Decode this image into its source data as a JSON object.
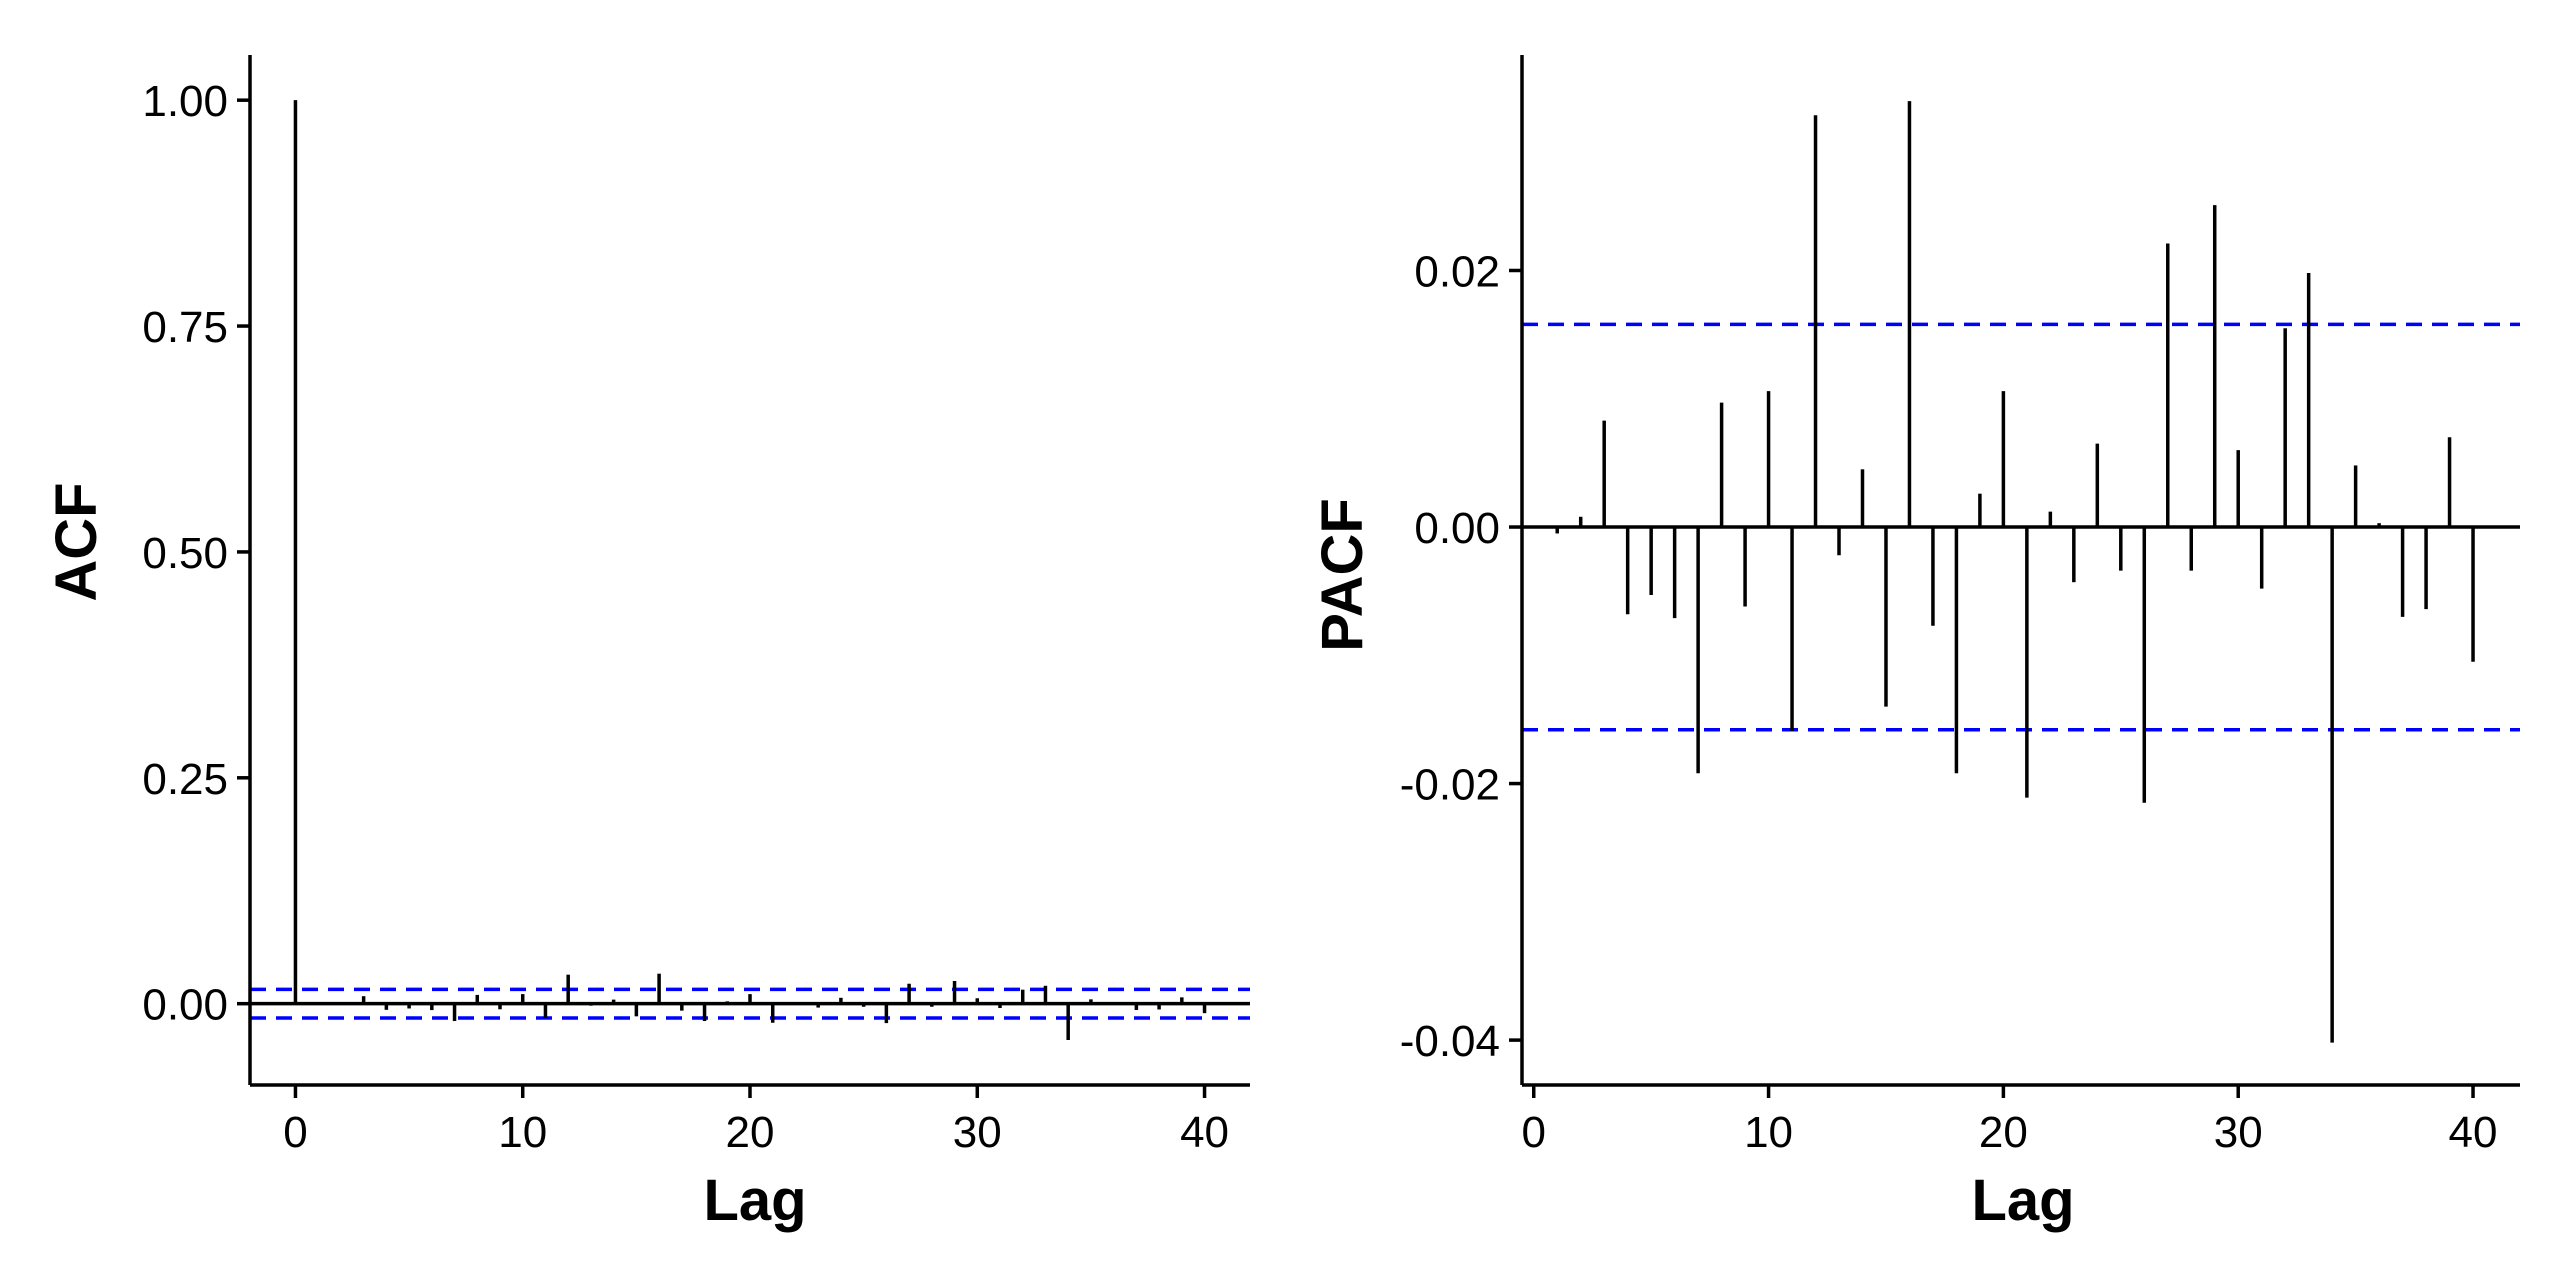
{
  "chart_data": [
    {
      "type": "bar",
      "style": "lollipop-stem",
      "xlabel": "Lag",
      "ylabel": "ACF",
      "xlim": [
        -2,
        42
      ],
      "ylim": [
        -0.09,
        1.05
      ],
      "xticks": [
        0,
        10,
        20,
        30,
        40
      ],
      "xtick_labels": [
        "0",
        "10",
        "20",
        "30",
        "40"
      ],
      "yticks": [
        0,
        0.25,
        0.5,
        0.75,
        1.0
      ],
      "ytick_labels": [
        "0.00",
        "0.25",
        "0.50",
        "0.75",
        "1.00"
      ],
      "confidence_bounds": [
        0.0158,
        -0.0158
      ],
      "lags": [
        0,
        1,
        2,
        3,
        4,
        5,
        6,
        7,
        8,
        9,
        10,
        11,
        12,
        13,
        14,
        15,
        16,
        17,
        18,
        19,
        20,
        21,
        22,
        23,
        24,
        25,
        26,
        27,
        28,
        29,
        30,
        31,
        32,
        33,
        34,
        35,
        36,
        37,
        38,
        39,
        40
      ],
      "values": [
        1.0,
        -0.0005,
        0.0008,
        0.0083,
        -0.0068,
        -0.0053,
        -0.0071,
        -0.0192,
        0.0097,
        -0.0062,
        0.0106,
        -0.0159,
        0.0321,
        -0.0022,
        0.0045,
        -0.014,
        0.0332,
        -0.0077,
        -0.0192,
        0.0026,
        0.0106,
        -0.0211,
        0.0012,
        -0.0043,
        0.0065,
        -0.0034,
        -0.0215,
        0.0221,
        -0.0034,
        0.0251,
        0.006,
        -0.0048,
        0.0155,
        0.0198,
        -0.0402,
        0.0048,
        0.0003,
        -0.007,
        -0.0064,
        0.007,
        -0.0105
      ],
      "grid": false,
      "colors": {
        "stem": "#000000",
        "bound": "#0000ff",
        "zero_line": "#000000"
      }
    },
    {
      "type": "bar",
      "style": "lollipop-stem",
      "xlabel": "Lag",
      "ylabel": "PACF",
      "xlim": [
        -0.5,
        42
      ],
      "ylim": [
        -0.0435,
        0.0368
      ],
      "xticks": [
        0,
        10,
        20,
        30,
        40
      ],
      "xtick_labels": [
        "0",
        "10",
        "20",
        "30",
        "40"
      ],
      "yticks": [
        -0.04,
        -0.02,
        0.0,
        0.02
      ],
      "ytick_labels": [
        "-0.04",
        "-0.02",
        "0.00",
        "0.02"
      ],
      "confidence_bounds": [
        0.0158,
        -0.0158
      ],
      "lags": [
        1,
        2,
        3,
        4,
        5,
        6,
        7,
        8,
        9,
        10,
        11,
        12,
        13,
        14,
        15,
        16,
        17,
        18,
        19,
        20,
        21,
        22,
        23,
        24,
        25,
        26,
        27,
        28,
        29,
        30,
        31,
        32,
        33,
        34,
        35,
        36,
        37,
        38,
        39,
        40
      ],
      "values": [
        -0.0005,
        0.0008,
        0.0083,
        -0.0068,
        -0.0053,
        -0.0071,
        -0.0192,
        0.0097,
        -0.0062,
        0.0106,
        -0.0159,
        0.0321,
        -0.0022,
        0.0045,
        -0.014,
        0.0332,
        -0.0077,
        -0.0192,
        0.0026,
        0.0106,
        -0.0211,
        0.0012,
        -0.0043,
        0.0065,
        -0.0034,
        -0.0215,
        0.0221,
        -0.0034,
        0.0251,
        0.006,
        -0.0048,
        0.0155,
        0.0198,
        -0.0402,
        0.0048,
        0.0003,
        -0.007,
        -0.0064,
        0.007,
        -0.0105
      ],
      "grid": false,
      "colors": {
        "stem": "#000000",
        "bound": "#0000ff",
        "zero_line": "#000000"
      }
    }
  ]
}
